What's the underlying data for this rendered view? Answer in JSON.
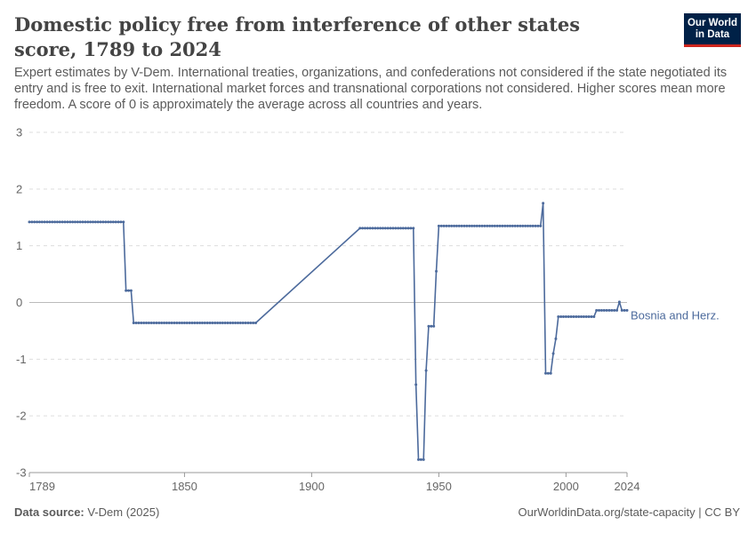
{
  "header": {
    "title": "Domestic policy free from interference of other states score, 1789 to 2024",
    "subtitle": "Expert estimates by V-Dem. International treaties, organizations, and confederations not considered if the state negotiated its entry and is free to exit. International market forces and transnational corporations not considered. Higher scores mean more freedom. A score of 0 is approximately the average across all countries and years.",
    "logo_line1": "Our World",
    "logo_line2": "in Data"
  },
  "footer": {
    "source_label": "Data source:",
    "source_value": "V-Dem (2025)",
    "url": "OurWorldinData.org/state-capacity | CC BY"
  },
  "colors": {
    "series": "#4c6a9c",
    "grid": "#dddddd",
    "zero": "#bbbbbb",
    "text": "#5b5b5b",
    "logo_bg": "#002147",
    "logo_accent": "#ce261e"
  },
  "chart_data": {
    "type": "line",
    "title": "Domestic policy free from interference of other states score, 1789 to 2024",
    "xlim": [
      1789,
      2024
    ],
    "ylim": [
      -3,
      3
    ],
    "x_ticks": [
      1789,
      1850,
      1900,
      1950,
      2000,
      2024
    ],
    "y_ticks": [
      3,
      2,
      1,
      0,
      -1,
      -2,
      -3
    ],
    "grid": "horizontal dashed",
    "series": [
      {
        "name": "Bosnia and Herz.",
        "color": "#4c6a9c",
        "segments": [
          [
            [
              1789,
              1.42
            ],
            [
              1826,
              1.42
            ],
            [
              1827,
              0.21
            ],
            [
              1829,
              0.21
            ],
            [
              1830,
              -0.36
            ],
            [
              1878,
              -0.36
            ]
          ],
          [
            [
              1878,
              -0.36
            ],
            [
              1919,
              1.31
            ]
          ],
          [
            [
              1919,
              1.31
            ],
            [
              1940,
              1.31
            ],
            [
              1941,
              -1.45
            ],
            [
              1942,
              -2.77
            ],
            [
              1944,
              -2.77
            ],
            [
              1945,
              -1.2
            ],
            [
              1946,
              -0.42
            ],
            [
              1948,
              -0.42
            ],
            [
              1949,
              0.55
            ],
            [
              1950,
              1.35
            ],
            [
              1990,
              1.35
            ],
            [
              1991,
              1.75
            ],
            [
              1992,
              -1.25
            ],
            [
              1994,
              -1.25
            ],
            [
              1995,
              -0.9
            ],
            [
              1996,
              -0.64
            ],
            [
              1997,
              -0.25
            ],
            [
              2011,
              -0.25
            ],
            [
              2012,
              -0.14
            ],
            [
              2020,
              -0.14
            ],
            [
              2021,
              0.01
            ],
            [
              2022,
              -0.14
            ],
            [
              2024,
              -0.14
            ]
          ]
        ]
      }
    ]
  }
}
